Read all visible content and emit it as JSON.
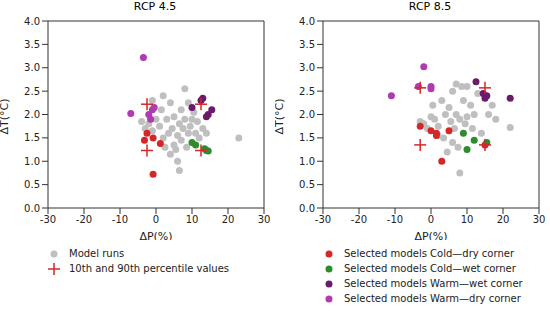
{
  "chart_data": [
    {
      "type": "scatter",
      "title": "RCP 4.5",
      "x_label": "ΔP(%)",
      "y_label": "ΔT(°C)",
      "xlim": [
        -30,
        30
      ],
      "xticks": [
        -30,
        -20,
        -10,
        0,
        10,
        20,
        30
      ],
      "ylim": [
        0,
        4
      ],
      "yticks": [
        {
          "value": 0,
          "label": "0.0"
        },
        0.5,
        {
          "value": 1,
          "label": "1.0"
        },
        1.5,
        {
          "value": 2,
          "label": "2.0"
        },
        2.5,
        {
          "value": 3,
          "label": "3.0"
        },
        3.5,
        {
          "value": 4,
          "label": "4.0"
        }
      ],
      "grid": false,
      "legend": "bottom",
      "series": [
        {
          "name": "Model runs",
          "color": "#bfbfbf",
          "marker": "circle",
          "x": [
            -4,
            -3,
            -2,
            -1,
            0,
            1,
            1.5,
            2,
            2.5,
            3,
            3.5,
            4,
            4,
            4.5,
            5,
            5,
            5.5,
            6,
            6,
            6.5,
            6.5,
            7,
            7,
            7.5,
            8,
            8,
            8.5,
            9,
            9,
            9.5,
            10,
            10.5,
            11,
            11.5,
            12,
            13,
            14,
            23,
            -1,
            2
          ],
          "values": [
            1.85,
            1.7,
            1.8,
            1.65,
            1.9,
            1.75,
            2.1,
            1.5,
            1.3,
            1.9,
            1.6,
            2.25,
            1.15,
            1.7,
            1.95,
            1.35,
            1.25,
            1.55,
            1.0,
            1.8,
            0.8,
            2.1,
            1.45,
            1.7,
            2.55,
            1.9,
            1.3,
            2.25,
            1.6,
            1.75,
            1.9,
            2.05,
            1.6,
            1.85,
            1.5,
            1.7,
            1.6,
            1.5,
            2.3,
            2.4
          ]
        },
        {
          "name": "Selected models Cold—dry corner",
          "color": "#d62728",
          "marker": "circle",
          "x": [
            -3.2,
            -2.5,
            -0.8,
            -0.8,
            1.2
          ],
          "values": [
            1.45,
            1.6,
            1.5,
            0.72,
            1.38
          ]
        },
        {
          "name": "Selected models Cold—wet corner",
          "color": "#2e8b2e",
          "marker": "circle",
          "x": [
            10,
            11,
            13.5,
            14,
            14.5
          ],
          "values": [
            1.4,
            1.35,
            1.27,
            1.23,
            1.22
          ]
        },
        {
          "name": "Selected models Warm—wet corner",
          "color": "#6a1b6a",
          "marker": "circle",
          "x": [
            10,
            12.5,
            13,
            14.5,
            15.5,
            14
          ],
          "values": [
            2.15,
            2.3,
            2.35,
            2.0,
            2.1,
            1.95
          ]
        },
        {
          "name": "Selected models Warm—dry corner",
          "color": "#b03ab0",
          "marker": "circle",
          "x": [
            -3.5,
            -7,
            -2,
            -1.5,
            -1,
            -0.5
          ],
          "values": [
            3.22,
            2.02,
            2.0,
            1.9,
            2.1,
            2.15
          ]
        },
        {
          "name": "10th and 90th percentile values",
          "color": "#d62728",
          "marker": "plus",
          "x": [
            -2.5,
            -2.5,
            12.5,
            12.5
          ],
          "values": [
            2.22,
            1.23,
            2.22,
            1.23
          ]
        }
      ]
    },
    {
      "type": "scatter",
      "title": "RCP 8.5",
      "x_label": "ΔP(%)",
      "y_label": "ΔT(°C)",
      "xlim": [
        -30,
        30
      ],
      "xticks": [
        -30,
        -20,
        -10,
        0,
        10,
        20,
        30
      ],
      "ylim": [
        0,
        4
      ],
      "yticks": [
        {
          "value": 0,
          "label": "0.0"
        },
        0.5,
        {
          "value": 1,
          "label": "1.0"
        },
        1.5,
        {
          "value": 2,
          "label": "2.0"
        },
        2.5,
        {
          "value": 3,
          "label": "3.0"
        },
        3.5,
        {
          "value": 4,
          "label": "4.0"
        }
      ],
      "grid": false,
      "series": [
        {
          "name": "Model runs",
          "color": "#bfbfbf",
          "marker": "circle",
          "x": [
            -3,
            -2,
            -1,
            0,
            0.5,
            1,
            2,
            3,
            3.5,
            4,
            5,
            5.5,
            6,
            6,
            6.5,
            7,
            7,
            7.5,
            8,
            8,
            8.5,
            9,
            9.5,
            10,
            10,
            11,
            11.5,
            12,
            13,
            14,
            16,
            17,
            18,
            22,
            2,
            4.5
          ],
          "values": [
            1.85,
            1.8,
            1.7,
            1.95,
            2.2,
            1.9,
            1.75,
            2.3,
            1.5,
            2.0,
            2.15,
            1.85,
            2.5,
            1.4,
            1.7,
            2.65,
            2.0,
            1.3,
            1.9,
            0.75,
            2.6,
            2.3,
            1.8,
            2.6,
            1.95,
            2.2,
            1.7,
            2.0,
            2.45,
            1.6,
            2.0,
            2.2,
            1.9,
            1.72,
            1.55,
            1.2
          ]
        },
        {
          "name": "Selected models Cold—dry corner",
          "color": "#d62728",
          "marker": "circle",
          "x": [
            -3,
            0,
            1.5,
            3,
            5,
            1.5,
            15
          ],
          "values": [
            1.75,
            1.65,
            1.6,
            1.0,
            1.65,
            1.55,
            1.35
          ]
        },
        {
          "name": "Selected models Cold—wet corner",
          "color": "#2e8b2e",
          "marker": "circle",
          "x": [
            9,
            10,
            12,
            15.5
          ],
          "values": [
            1.6,
            1.25,
            1.45,
            1.4
          ]
        },
        {
          "name": "Selected models Warm—wet corner",
          "color": "#6a1b6a",
          "marker": "circle",
          "x": [
            12.5,
            14.5,
            15,
            15.5,
            22
          ],
          "values": [
            2.7,
            2.45,
            2.35,
            2.4,
            2.35
          ]
        },
        {
          "name": "Selected models Warm—dry corner",
          "color": "#b03ab0",
          "marker": "circle",
          "x": [
            -11,
            -3.5,
            -2,
            0,
            0
          ],
          "values": [
            2.4,
            2.6,
            3.02,
            2.55,
            2.6
          ]
        },
        {
          "name": "10th and 90th percentile values",
          "color": "#d62728",
          "marker": "plus",
          "x": [
            -3,
            -3,
            15,
            15
          ],
          "values": [
            2.57,
            1.35,
            2.57,
            1.35
          ]
        }
      ]
    }
  ]
}
